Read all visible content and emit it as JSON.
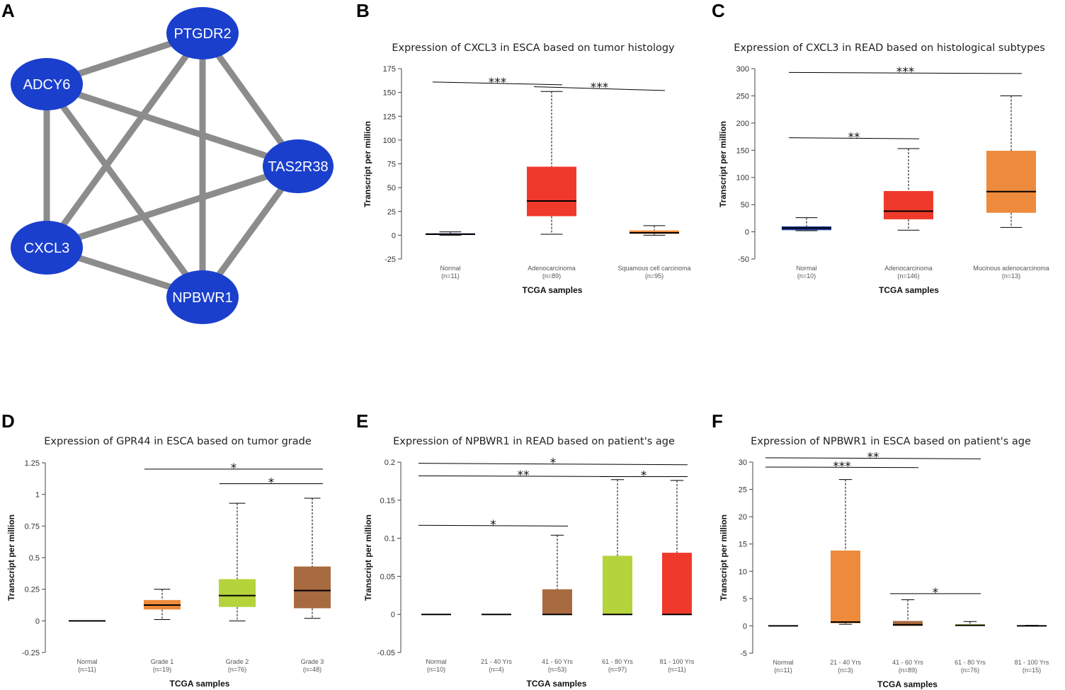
{
  "colors": {
    "node": "#1a3fcc",
    "edge": "#8c8c8c",
    "normal": "#1f3f9f",
    "orange": "#ee8a3b",
    "red": "#ef3a2b",
    "lime": "#b5d33a",
    "brown": "#a86a3f"
  },
  "network": {
    "letter": "A",
    "nodes": [
      {
        "id": "PTGDR2",
        "label": "PTGDR2"
      },
      {
        "id": "ADCY6",
        "label": "ADCY6"
      },
      {
        "id": "TAS2R38",
        "label": "TAS2R38"
      },
      {
        "id": "CXCL3",
        "label": "CXCL3"
      },
      {
        "id": "NPBWR1",
        "label": "NPBWR1"
      }
    ],
    "edges": [
      [
        "PTGDR2",
        "ADCY6"
      ],
      [
        "PTGDR2",
        "TAS2R38"
      ],
      [
        "PTGDR2",
        "CXCL3"
      ],
      [
        "PTGDR2",
        "NPBWR1"
      ],
      [
        "ADCY6",
        "TAS2R38"
      ],
      [
        "ADCY6",
        "CXCL3"
      ],
      [
        "ADCY6",
        "NPBWR1"
      ],
      [
        "TAS2R38",
        "CXCL3"
      ],
      [
        "TAS2R38",
        "NPBWR1"
      ],
      [
        "CXCL3",
        "NPBWR1"
      ]
    ]
  },
  "chart_data": [
    {
      "letter": "B",
      "type": "boxplot",
      "title": "Expression of CXCL3 in ESCA based on tumor histology",
      "xlabel": "TCGA samples",
      "ylabel": "Transcript per million",
      "ylim": [
        -25,
        175
      ],
      "yticks": [
        -25,
        0,
        25,
        50,
        75,
        100,
        125,
        150,
        175
      ],
      "ytick_labels": [
        "-25",
        "0",
        "25",
        "50",
        "75",
        "100",
        "125",
        "150",
        "175"
      ],
      "categories": [
        {
          "name": "Normal",
          "n": "(n=11)",
          "color": "normal",
          "min": 0,
          "q1": 0.5,
          "median": 1,
          "q3": 2,
          "max": 3.5
        },
        {
          "name": "Adenocarcinoma",
          "n": "(n=89)",
          "color": "red",
          "min": 1,
          "q1": 20,
          "median": 36,
          "q3": 72,
          "max": 151
        },
        {
          "name": "Squamous cell carcinoma",
          "n": "(n=95)",
          "color": "orange",
          "min": 0,
          "q1": 1.5,
          "median": 2.5,
          "q3": 5,
          "max": 10
        }
      ],
      "significance": [
        {
          "from": 0,
          "to": 1,
          "label": "***",
          "y": 161,
          "y2": 158
        },
        {
          "from": 1,
          "to": 2,
          "label": "***",
          "y": 156,
          "y2": 152
        }
      ]
    },
    {
      "letter": "C",
      "type": "boxplot",
      "title": "Expression of CXCL3 in READ based on histological subtypes",
      "xlabel": "TCGA samples",
      "ylabel": "Transcript per million",
      "ylim": [
        -50,
        300
      ],
      "yticks": [
        -50,
        0,
        50,
        100,
        150,
        200,
        250,
        300
      ],
      "ytick_labels": [
        "-50",
        "0",
        "50",
        "100",
        "150",
        "200",
        "250",
        "300"
      ],
      "categories": [
        {
          "name": "Normal",
          "n": "(n=10)",
          "color": "normal",
          "min": 2,
          "q1": 3,
          "median": 7,
          "q3": 10,
          "max": 26
        },
        {
          "name": "Adenocarcinoma",
          "n": "(n=146)",
          "color": "red",
          "min": 3,
          "q1": 23,
          "median": 38,
          "q3": 75,
          "max": 153
        },
        {
          "name": "Mucinous adenocarcinoma",
          "n": "(n=13)",
          "color": "orange",
          "min": 8,
          "q1": 35,
          "median": 74,
          "q3": 149,
          "max": 250
        }
      ],
      "significance": [
        {
          "from": 0,
          "to": 2,
          "label": "***",
          "y": 293,
          "y2": 291
        },
        {
          "from": 0,
          "to": 1,
          "label": "**",
          "y": 173,
          "y2": 171
        }
      ]
    },
    {
      "letter": "D",
      "type": "boxplot",
      "title": "Expression of GPR44 in ESCA based on tumor grade",
      "xlabel": "TCGA samples",
      "ylabel": "Transcript per million",
      "ylim": [
        -0.25,
        1.25
      ],
      "yticks": [
        -0.25,
        0,
        0.25,
        0.5,
        0.75,
        1,
        1.25
      ],
      "ytick_labels": [
        "-0.25",
        "0",
        "0.25",
        "0.5",
        "0.75",
        "1",
        "1.25"
      ],
      "categories": [
        {
          "name": "Normal",
          "n": "(n=11)",
          "color": "normal",
          "min": 0,
          "q1": 0,
          "median": 0,
          "q3": 0,
          "max": 0
        },
        {
          "name": "Grade 1",
          "n": "(n=19)",
          "color": "orange",
          "min": 0.01,
          "q1": 0.09,
          "median": 0.125,
          "q3": 0.165,
          "max": 0.25
        },
        {
          "name": "Grade 2",
          "n": "(n=76)",
          "color": "lime",
          "min": 0,
          "q1": 0.11,
          "median": 0.2,
          "q3": 0.33,
          "max": 0.93
        },
        {
          "name": "Grade 3",
          "n": "(n=48)",
          "color": "brown",
          "min": 0.02,
          "q1": 0.1,
          "median": 0.24,
          "q3": 0.43,
          "max": 0.97
        }
      ],
      "significance": [
        {
          "from": 1,
          "to": 3,
          "label": "*",
          "y": 1.2,
          "y2": 1.2
        },
        {
          "from": 2,
          "to": 3,
          "label": "*",
          "y": 1.085,
          "y2": 1.085
        }
      ]
    },
    {
      "letter": "E",
      "type": "boxplot",
      "title": "Expression of NPBWR1 in READ based on patient's age",
      "xlabel": "TCGA samples",
      "ylabel": "Transcript per million",
      "ylim": [
        -0.05,
        0.2
      ],
      "yticks": [
        -0.05,
        0,
        0.05,
        0.1,
        0.15,
        0.2
      ],
      "ytick_labels": [
        "-0.05",
        "0",
        "0.05",
        "0.1",
        "0.15",
        "0.2"
      ],
      "categories": [
        {
          "name": "Normal",
          "n": "(n=10)",
          "color": "normal",
          "min": 0,
          "q1": 0,
          "median": 0,
          "q3": 0,
          "max": 0
        },
        {
          "name": "21 - 40 Yrs",
          "n": "(n=4)",
          "color": "normal",
          "min": 0,
          "q1": 0,
          "median": 0,
          "q3": 0,
          "max": 0
        },
        {
          "name": "41 - 60 Yrs",
          "n": "(n=53)",
          "color": "brown",
          "min": 0,
          "q1": 0,
          "median": 0,
          "q3": 0.033,
          "max": 0.104
        },
        {
          "name": "61 - 80 Yrs",
          "n": "(n=97)",
          "color": "lime",
          "min": 0,
          "q1": 0,
          "median": 0,
          "q3": 0.077,
          "max": 0.177
        },
        {
          "name": "81 - 100 Yrs",
          "n": "(n=11)",
          "color": "red",
          "min": 0,
          "q1": 0,
          "median": 0,
          "q3": 0.081,
          "max": 0.176
        }
      ],
      "significance": [
        {
          "from": 0,
          "to": 4,
          "label": "*",
          "y": 0.1985,
          "y2": 0.1965
        },
        {
          "from": 0,
          "to": 3,
          "label": "**",
          "y": 0.182,
          "y2": 0.181
        },
        {
          "from": 3,
          "to": 4,
          "label": "*",
          "y": 0.181,
          "y2": 0.181
        },
        {
          "from": 0,
          "to": 2,
          "label": "*",
          "y": 0.117,
          "y2": 0.116
        }
      ]
    },
    {
      "letter": "F",
      "type": "boxplot",
      "title": "Expression of NPBWR1 in ESCA based on patient's age",
      "xlabel": "TCGA samples",
      "ylabel": "Transcript per million",
      "ylim": [
        -5,
        30
      ],
      "yticks": [
        -5,
        0,
        5,
        10,
        15,
        20,
        25,
        30
      ],
      "ytick_labels": [
        "-5",
        "0",
        "5",
        "10",
        "15",
        "20",
        "25",
        "30"
      ],
      "categories": [
        {
          "name": "Normal",
          "n": "(n=11)",
          "color": "normal",
          "min": 0,
          "q1": 0,
          "median": 0,
          "q3": 0,
          "max": 0
        },
        {
          "name": "21 - 40 Yrs",
          "n": "(n=3)",
          "color": "orange",
          "min": 0.3,
          "q1": 0.5,
          "median": 0.7,
          "q3": 13.8,
          "max": 26.8
        },
        {
          "name": "41 - 60 Yrs",
          "n": "(n=89)",
          "color": "brown",
          "min": 0,
          "q1": 0,
          "median": 0.2,
          "q3": 0.9,
          "max": 4.8
        },
        {
          "name": "61 - 80 Yrs",
          "n": "(n=76)",
          "color": "lime",
          "min": 0,
          "q1": 0,
          "median": 0.1,
          "q3": 0.3,
          "max": 0.8
        },
        {
          "name": "81 - 100 Yrs",
          "n": "(n=15)",
          "color": "normal",
          "min": 0,
          "q1": 0,
          "median": 0,
          "q3": 0.05,
          "max": 0.1
        }
      ],
      "significance": [
        {
          "from": 0,
          "to": 3,
          "label": "**",
          "y": 30.8,
          "y2": 30.6
        },
        {
          "from": 0,
          "to": 2,
          "label": "***",
          "y": 29.1,
          "y2": 29.0
        },
        {
          "from": 2,
          "to": 3,
          "label": "*",
          "y": 5.9,
          "y2": 5.9
        }
      ]
    }
  ]
}
